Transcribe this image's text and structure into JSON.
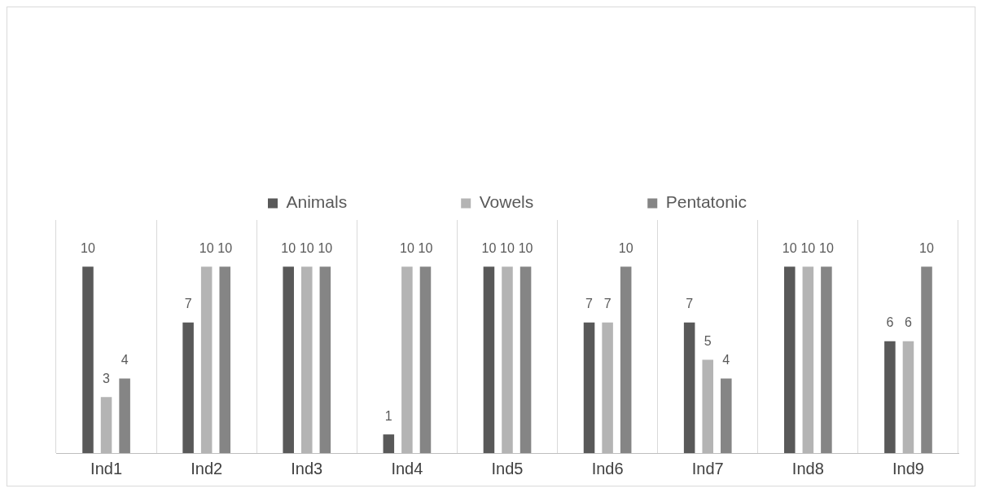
{
  "chart_data": {
    "type": "bar",
    "categories": [
      "Ind1",
      "Ind2",
      "Ind3",
      "Ind4",
      "Ind5",
      "Ind6",
      "Ind7",
      "Ind8",
      "Ind9"
    ],
    "series": [
      {
        "name": "Animals",
        "color": "#595959",
        "values": [
          10,
          7,
          10,
          1,
          10,
          7,
          7,
          10,
          6
        ]
      },
      {
        "name": "Vowels",
        "color": "#b4b4b4",
        "values": [
          3,
          10,
          10,
          10,
          10,
          7,
          5,
          10,
          6
        ]
      },
      {
        "name": "Pentatonic",
        "color": "#858585",
        "values": [
          4,
          10,
          10,
          10,
          10,
          10,
          4,
          10,
          10
        ]
      }
    ],
    "ylim": [
      0,
      12.5
    ],
    "tick_labels": "x",
    "grid": "x",
    "legend": "top",
    "data_labels": true
  }
}
